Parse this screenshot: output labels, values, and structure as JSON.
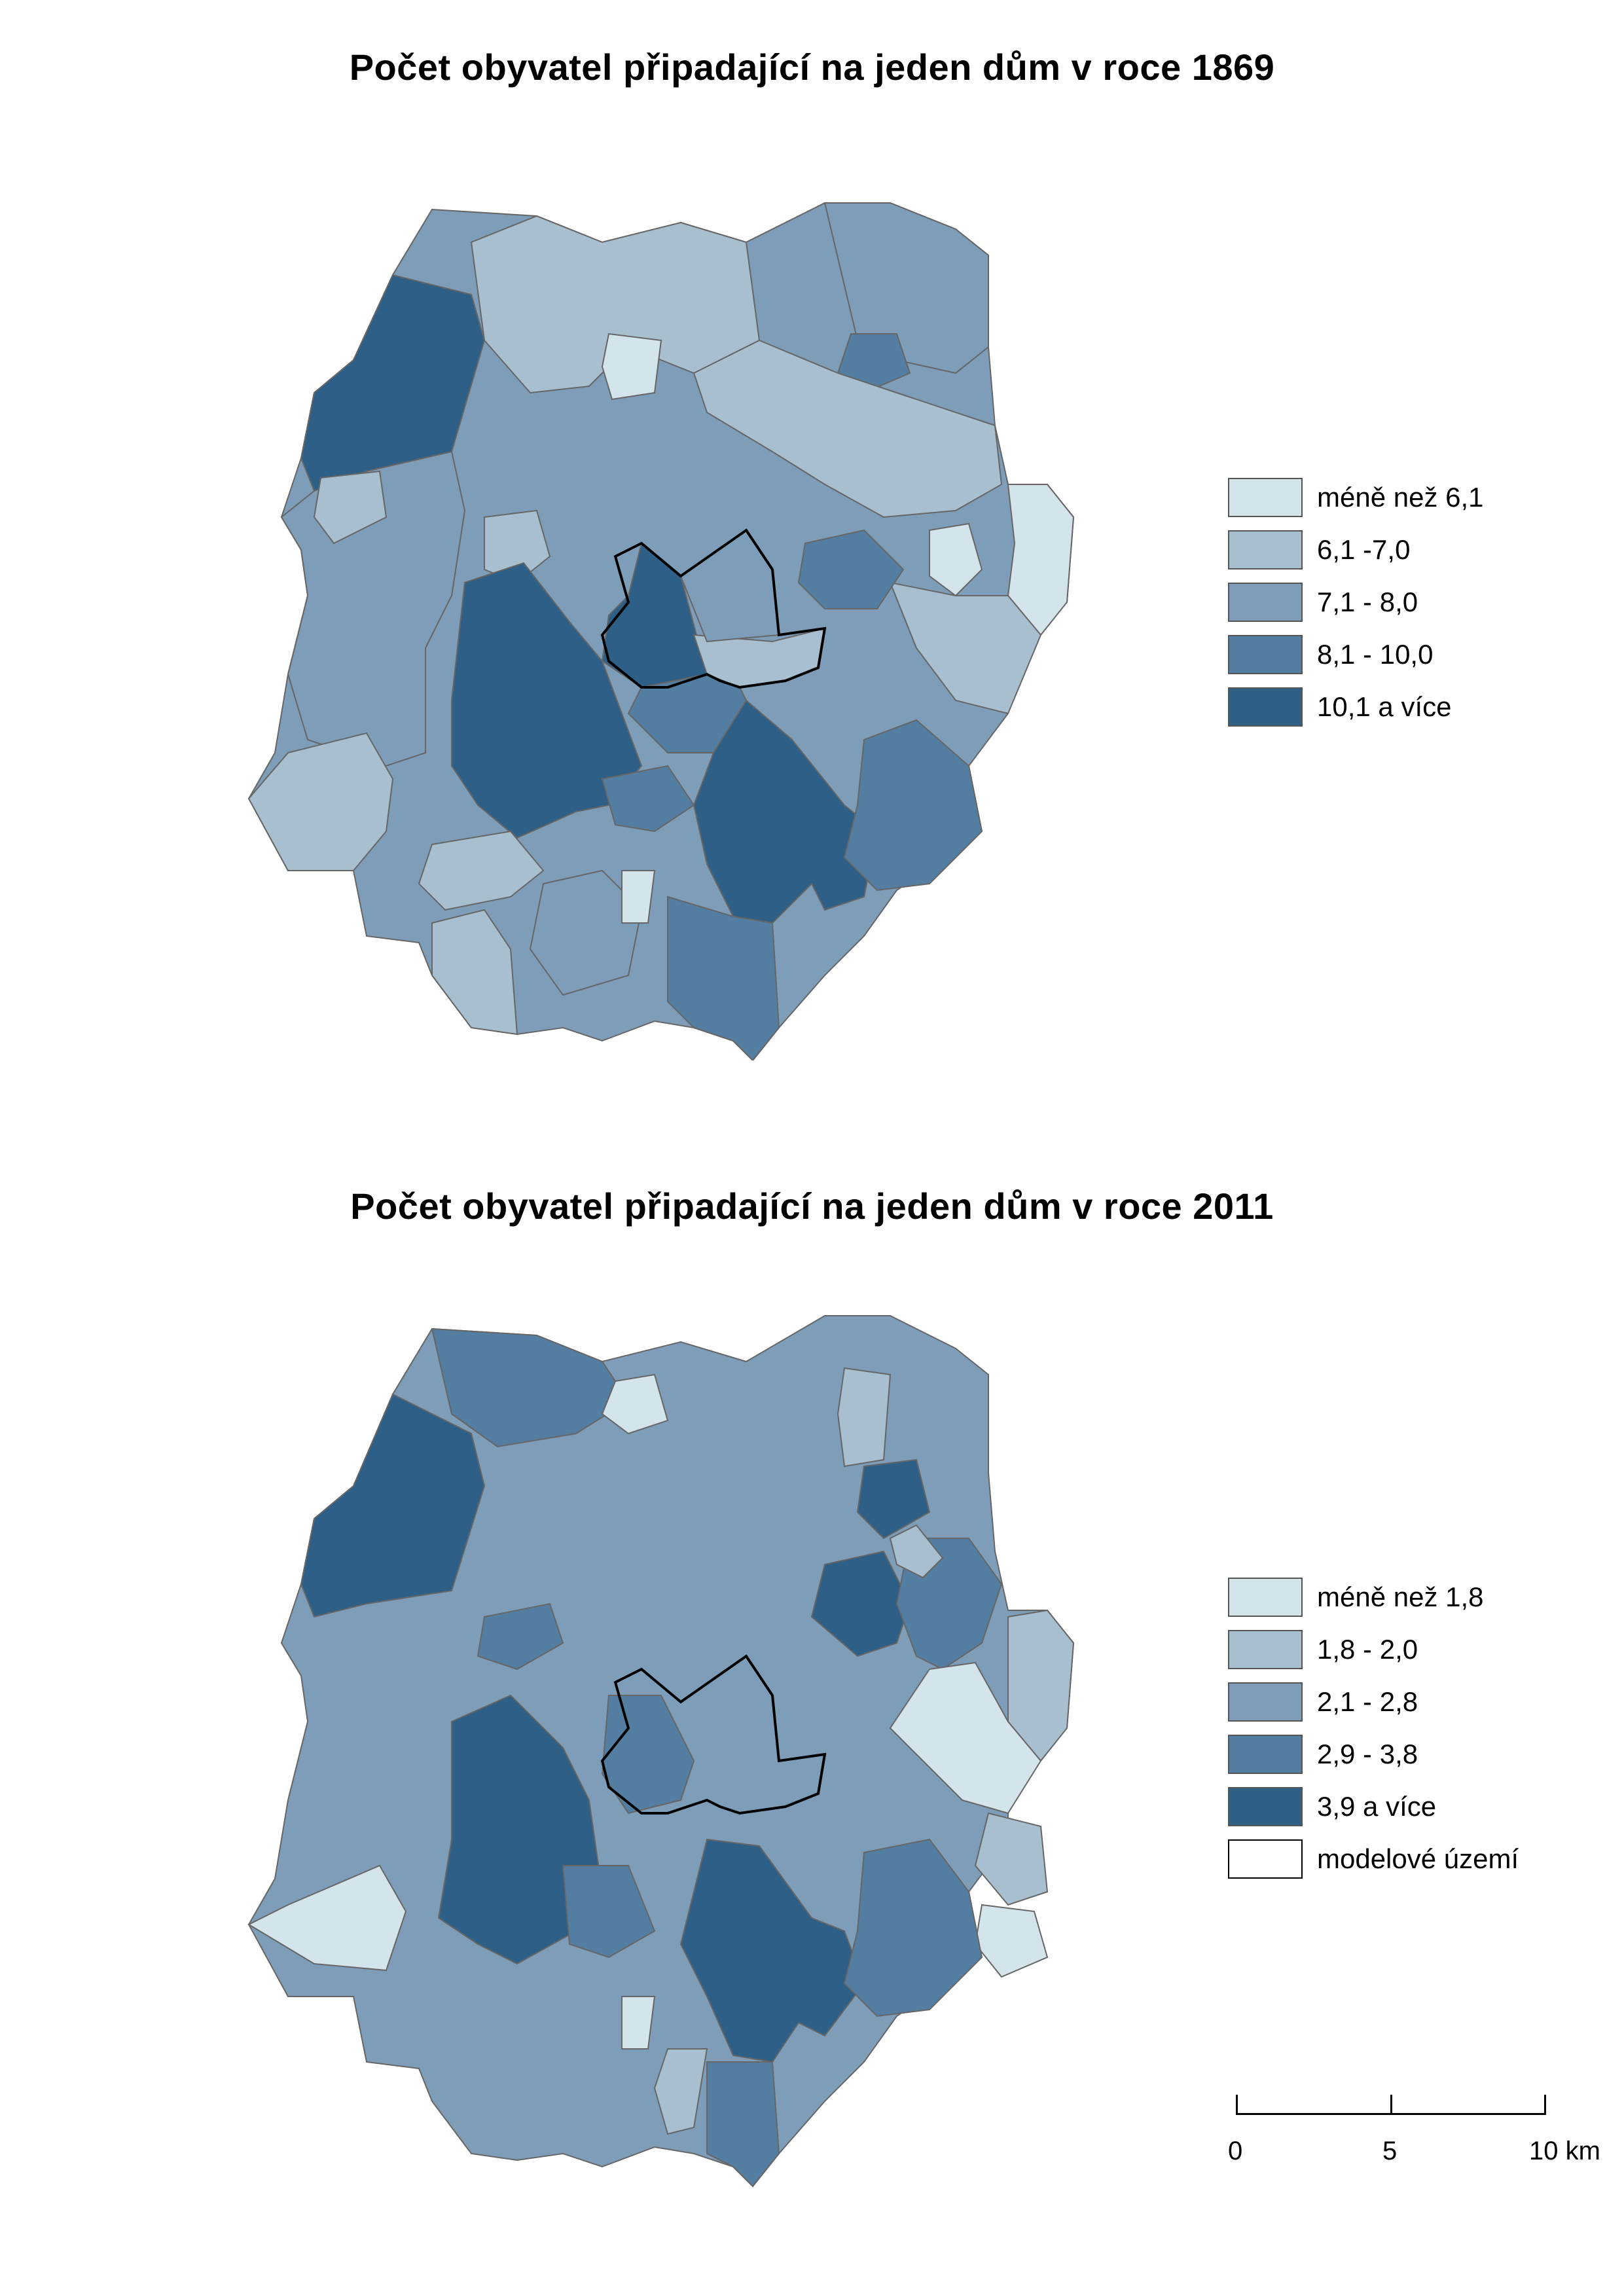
{
  "maps": [
    {
      "title": "Počet obyvatel připadající na jeden dům v roce 1869",
      "legend": [
        {
          "label": "méně než 6,1",
          "color": "#d4e4eb"
        },
        {
          "label": "6,1 -7,0",
          "color": "#a8bfcf"
        },
        {
          "label": "7,1 - 8,0",
          "color": "#7d9db8"
        },
        {
          "label": "8,1 - 10,0",
          "color": "#537ea1"
        },
        {
          "label": "10,1 a více",
          "color": "#2d5f87"
        }
      ]
    },
    {
      "title": "Počet obyvatel připadající na jeden dům v roce 2011",
      "legend": [
        {
          "label": "méně než 1,8",
          "color": "#d4e4eb"
        },
        {
          "label": "1,8 - 2,0",
          "color": "#a8bfcf"
        },
        {
          "label": "2,1 - 2,8",
          "color": "#7d9db8"
        },
        {
          "label": "2,9 - 3,8",
          "color": "#537ea1"
        },
        {
          "label": "3,9 a více",
          "color": "#2d5f87"
        },
        {
          "label": "modelové území",
          "color": "#ffffff"
        }
      ]
    }
  ],
  "scalebar": {
    "labels": [
      "0",
      "5",
      "10 km"
    ]
  }
}
